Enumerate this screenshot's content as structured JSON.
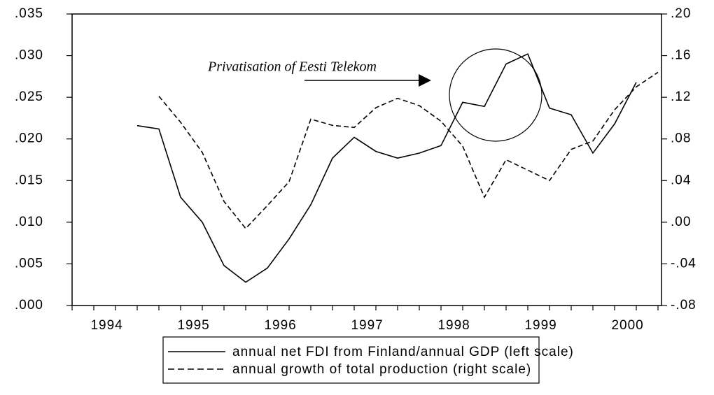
{
  "chart_data": {
    "type": "line",
    "categories": [
      "1994",
      null,
      null,
      null,
      "1995",
      null,
      null,
      null,
      "1996",
      null,
      null,
      null,
      "1997",
      null,
      null,
      null,
      "1998",
      null,
      null,
      null,
      "1999",
      null,
      null,
      null,
      "2000",
      null,
      null,
      null
    ],
    "series": [
      {
        "name": "annual net FDI from Finland/annual GDP (left scale)",
        "color": "#000000",
        "dash": "solid",
        "values": [
          null,
          null,
          null,
          0.0216,
          0.0212,
          0.013,
          0.01,
          0.0048,
          0.0028,
          0.0045,
          0.008,
          0.0121,
          0.0177,
          0.0202,
          0.0185,
          0.0177,
          0.0183,
          0.0192,
          0.0244,
          0.0239,
          0.029,
          0.0302,
          0.0237,
          0.0229,
          0.0183,
          0.0218,
          0.0268,
          null
        ]
      },
      {
        "name": "annual growth of total production (right scale)",
        "color": "#000000",
        "dash": "dashed",
        "axis": "y2",
        "values": [
          null,
          null,
          null,
          null,
          0.121,
          0.096,
          0.067,
          0.02,
          -0.006,
          0.016,
          0.039,
          0.099,
          0.093,
          0.091,
          0.11,
          0.119,
          0.112,
          0.097,
          0.073,
          0.024,
          0.06,
          0.05,
          0.04,
          0.07,
          0.078,
          0.108,
          0.13,
          0.144
        ]
      }
    ],
    "ylim": [
      0,
      0.035
    ],
    "yticks": [
      {
        "value": 0,
        "label": ".000"
      },
      {
        "value": 0.005,
        "label": ".005"
      },
      {
        "value": 0.01,
        "label": ".010"
      },
      {
        "value": 0.015,
        "label": ".015"
      },
      {
        "value": 0.02,
        "label": ".020"
      },
      {
        "value": 0.025,
        "label": ".025"
      },
      {
        "value": 0.03,
        "label": ".030"
      },
      {
        "value": 0.035,
        "label": ".035"
      }
    ],
    "y2lim": [
      -0.08,
      0.2
    ],
    "y2ticks": [
      {
        "value": -0.08,
        "label": "-.08"
      },
      {
        "value": -0.04,
        "label": "-.04"
      },
      {
        "value": 0,
        "label": ".00"
      },
      {
        "value": 0.04,
        "label": ".04"
      },
      {
        "value": 0.08,
        "label": ".08"
      },
      {
        "value": 0.12,
        "label": ".12"
      },
      {
        "value": 0.16,
        "label": ".16"
      },
      {
        "value": 0.2,
        "label": ".20"
      }
    ],
    "annotation": "Privatisation of Eesti Telekom",
    "legend": "bottom"
  }
}
